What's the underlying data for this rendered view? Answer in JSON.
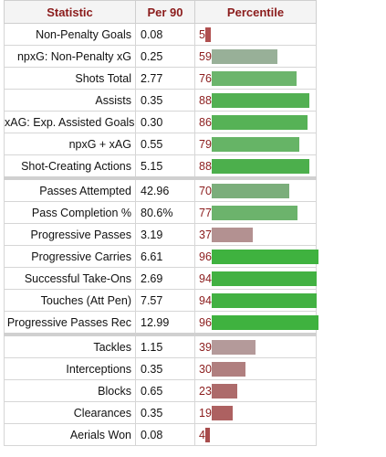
{
  "header": {
    "statistic": "Statistic",
    "per90": "Per 90",
    "percentile": "Percentile"
  },
  "rows": [
    {
      "stat": "Non-Penalty Goals",
      "per90": "0.08",
      "pct": 5,
      "color": "#b05050"
    },
    {
      "stat": "npxG: Non-Penalty xG",
      "per90": "0.25",
      "pct": 59,
      "color": "#98b098"
    },
    {
      "stat": "Shots Total",
      "per90": "2.77",
      "pct": 76,
      "color": "#6cb56c"
    },
    {
      "stat": "Assists",
      "per90": "0.35",
      "pct": 88,
      "color": "#52b052"
    },
    {
      "stat": "xAG: Exp. Assisted Goals",
      "per90": "0.30",
      "pct": 86,
      "color": "#56b256"
    },
    {
      "stat": "npxG + xAG",
      "per90": "0.55",
      "pct": 79,
      "color": "#66b466"
    },
    {
      "stat": "Shot-Creating Actions",
      "per90": "5.15",
      "pct": 88,
      "color": "#4caf4c"
    },
    {
      "stat": "Passes Attempted",
      "per90": "42.96",
      "pct": 70,
      "color": "#7bae7b",
      "sep": true
    },
    {
      "stat": "Pass Completion %",
      "per90": "80.6%",
      "pct": 77,
      "color": "#6cb36c"
    },
    {
      "stat": "Progressive Passes",
      "per90": "3.19",
      "pct": 37,
      "color": "#b39191"
    },
    {
      "stat": "Progressive Carries",
      "per90": "6.61",
      "pct": 96,
      "color": "#3fb23f"
    },
    {
      "stat": "Successful Take-Ons",
      "per90": "2.69",
      "pct": 94,
      "color": "#42b142"
    },
    {
      "stat": "Touches (Att Pen)",
      "per90": "7.57",
      "pct": 94,
      "color": "#42b142"
    },
    {
      "stat": "Progressive Passes Rec",
      "per90": "12.99",
      "pct": 96,
      "color": "#3fb23f"
    },
    {
      "stat": "Tackles",
      "per90": "1.15",
      "pct": 39,
      "color": "#b49a9a",
      "sep": true
    },
    {
      "stat": "Interceptions",
      "per90": "0.35",
      "pct": 30,
      "color": "#b07f7f"
    },
    {
      "stat": "Blocks",
      "per90": "0.65",
      "pct": 23,
      "color": "#ad6b6b"
    },
    {
      "stat": "Clearances",
      "per90": "0.35",
      "pct": 19,
      "color": "#ad6161"
    },
    {
      "stat": "Aerials Won",
      "per90": "0.08",
      "pct": 4,
      "color": "#a84c4c"
    }
  ]
}
